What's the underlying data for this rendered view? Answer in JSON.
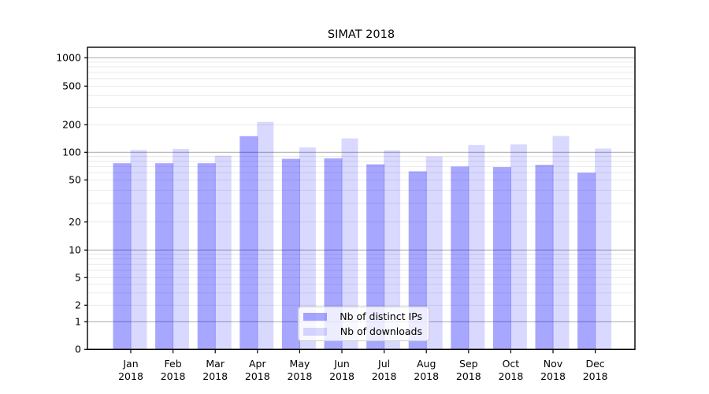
{
  "chart_data": {
    "type": "bar",
    "title": "SIMAT 2018",
    "categories": [
      "Jan",
      "Feb",
      "Mar",
      "Apr",
      "May",
      "Jun",
      "Jul",
      "Aug",
      "Sep",
      "Oct",
      "Nov",
      "Dec"
    ],
    "category_year": "2018",
    "series": [
      {
        "name": "Nb of distinct IPs",
        "fill": "rgba(0,0,255,0.345)",
        "values": [
          76,
          76,
          76,
          150,
          85,
          86,
          74,
          62,
          70,
          69,
          73,
          60
        ]
      },
      {
        "name": "Nb of downloads",
        "fill": "rgba(0,0,255,0.148)",
        "values": [
          106,
          109,
          92,
          214,
          113,
          142,
          105,
          90,
          120,
          122,
          151,
          110
        ]
      }
    ],
    "xlabel": "",
    "ylabel": "",
    "yscale": "symlog",
    "yticks": [
      0,
      1,
      2,
      5,
      10,
      20,
      50,
      100,
      200,
      500,
      1000
    ],
    "ylim": [
      0,
      1280
    ],
    "grid": "on",
    "legend_position": "lower center",
    "colors": {
      "major_grid": "#b2b2b2",
      "minor_grid": "#e7e7e7",
      "axis": "#000000",
      "text": "#000000"
    }
  }
}
